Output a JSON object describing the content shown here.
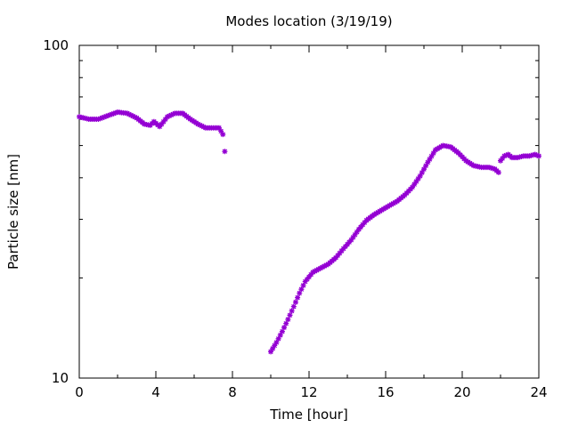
{
  "chart_data": {
    "type": "scatter",
    "title": "Modes location (3/19/19)",
    "xlabel": "Time [hour]",
    "ylabel": "Particle size [nm]",
    "xlim": [
      0,
      24
    ],
    "ylim": [
      10,
      100
    ],
    "yscale": "log",
    "grid": false,
    "legend": "none",
    "marker": "star",
    "color": "#9400d3",
    "x_ticks": [
      {
        "value": 0,
        "label": "0"
      },
      {
        "value": 4,
        "label": "4"
      },
      {
        "value": 8,
        "label": "8"
      },
      {
        "value": 12,
        "label": "12"
      },
      {
        "value": 16,
        "label": "16"
      },
      {
        "value": 20,
        "label": "20"
      },
      {
        "value": 24,
        "label": "24"
      }
    ],
    "y_ticks": [
      {
        "value": 10,
        "label": "10"
      },
      {
        "value": 100,
        "label": "100"
      }
    ],
    "series": [
      {
        "x": [
          0.0,
          0.5,
          1.0,
          1.5,
          2.0,
          2.5,
          3.0,
          3.4,
          3.7,
          3.9,
          4.2,
          4.6,
          5.0,
          5.4,
          5.8,
          6.2,
          6.6,
          7.0,
          7.3,
          7.5,
          7.6
        ],
        "y": [
          61.0,
          60.0,
          60.0,
          61.5,
          63.0,
          62.5,
          60.5,
          58.0,
          57.5,
          59.0,
          57.0,
          61.0,
          62.5,
          62.5,
          60.0,
          58.0,
          56.5,
          56.5,
          56.5,
          54.0,
          48.0
        ]
      },
      {
        "x": [
          10.0,
          10.3,
          10.6,
          10.9,
          11.2,
          11.5,
          11.8,
          12.2,
          12.6,
          13.0,
          13.4,
          13.8,
          14.2,
          14.6,
          15.0,
          15.4,
          15.8,
          16.2,
          16.6,
          17.0,
          17.4,
          17.8,
          18.2,
          18.6,
          19.0,
          19.4,
          19.8,
          20.2,
          20.6,
          21.0,
          21.4,
          21.7,
          21.9
        ],
        "y": [
          12.0,
          12.8,
          13.8,
          15.0,
          16.4,
          18.0,
          19.5,
          20.8,
          21.4,
          22.0,
          23.0,
          24.5,
          26.0,
          28.0,
          29.8,
          31.0,
          32.0,
          33.0,
          34.0,
          35.5,
          37.5,
          40.5,
          44.5,
          48.5,
          50.0,
          49.5,
          47.5,
          45.0,
          43.5,
          43.0,
          43.0,
          42.5,
          41.5
        ]
      },
      {
        "x": [
          22.0,
          22.2,
          22.4,
          22.6,
          22.9,
          23.2,
          23.5,
          23.8,
          24.0
        ],
        "y": [
          45.0,
          46.5,
          47.0,
          46.0,
          46.0,
          46.5,
          46.5,
          47.0,
          46.5
        ]
      }
    ]
  }
}
